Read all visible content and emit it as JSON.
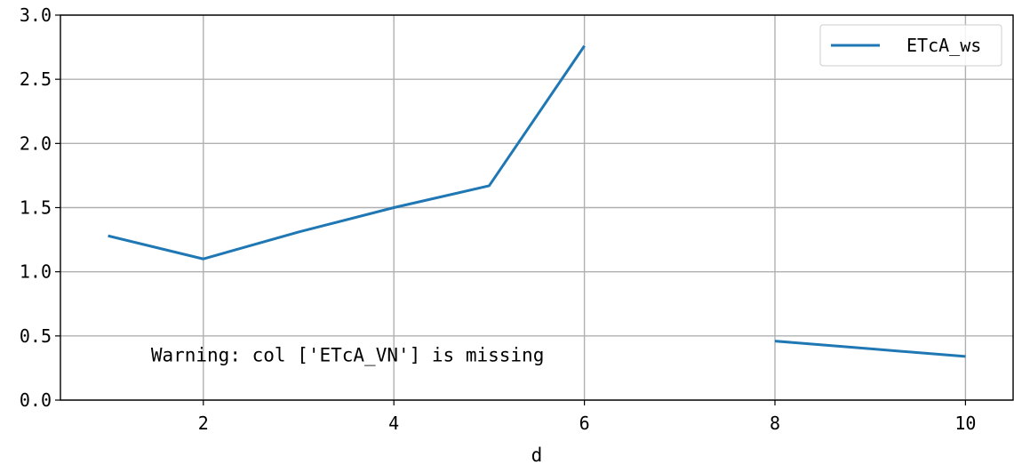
{
  "chart_data": {
    "type": "line",
    "title": "",
    "xlabel": "d",
    "ylabel": "",
    "xlim": [
      0.5,
      10.5
    ],
    "ylim": [
      0.0,
      3.0
    ],
    "xticks": [
      2,
      4,
      6,
      8,
      10
    ],
    "xtick_labels": [
      "2",
      "4",
      "6",
      "8",
      "10"
    ],
    "yticks": [
      0.0,
      0.5,
      1.0,
      1.5,
      2.0,
      2.5,
      3.0
    ],
    "ytick_labels": [
      "0.0",
      "0.5",
      "1.0",
      "1.5",
      "2.0",
      "2.5",
      "3.0"
    ],
    "grid": true,
    "legend_position": "top-right",
    "series": [
      {
        "name": "ETcA_ws",
        "color": "#1f77b4",
        "x": [
          1,
          2,
          3,
          4,
          5,
          6,
          7,
          8,
          9,
          10
        ],
        "y": [
          1.28,
          1.1,
          1.31,
          1.5,
          1.67,
          2.76,
          null,
          0.46,
          0.4,
          0.34
        ]
      }
    ],
    "annotations": [
      {
        "text": "Warning: col ['ETcA_VN'] is missing",
        "x": 1.45,
        "y": 0.3
      }
    ]
  }
}
